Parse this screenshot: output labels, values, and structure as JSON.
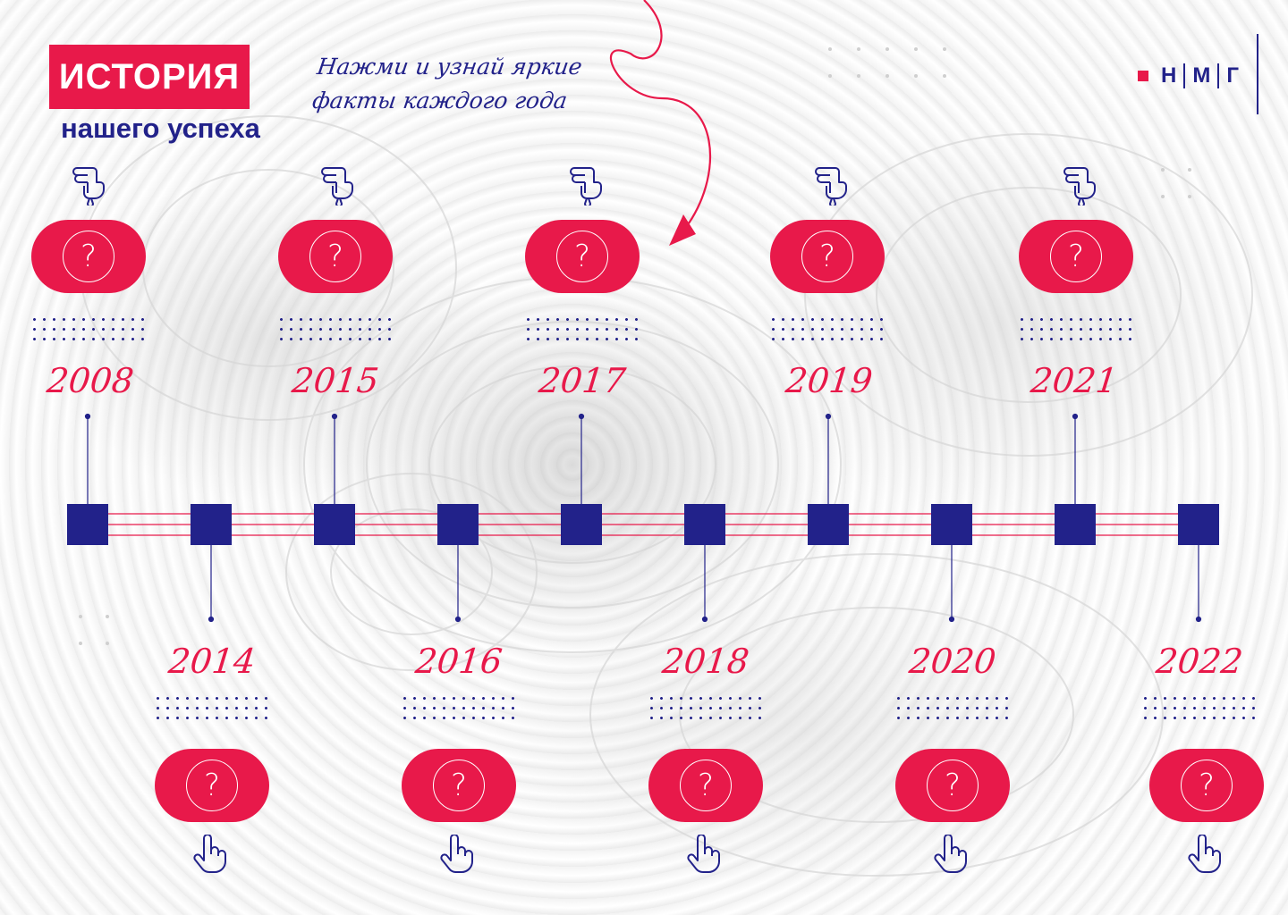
{
  "title": {
    "main": "ИСТОРИЯ",
    "sub": "нашего успеха"
  },
  "hint": {
    "line1": "Нажми и узнай яркие",
    "line2": "факты каждого года"
  },
  "logo": {
    "letters": [
      "Н",
      "М",
      "Г"
    ]
  },
  "pill_symbol": "?",
  "icons": {
    "hand": "hand-pointer-icon",
    "question": "question-mark-icon",
    "arrow": "curved-arrow-icon"
  },
  "colors": {
    "accent": "#e8194a",
    "primary": "#22228a"
  },
  "timeline": {
    "top_years": [
      "2008",
      "2015",
      "2017",
      "2019",
      "2021"
    ],
    "bottom_years": [
      "2014",
      "2016",
      "2018",
      "2020",
      "2022"
    ]
  }
}
